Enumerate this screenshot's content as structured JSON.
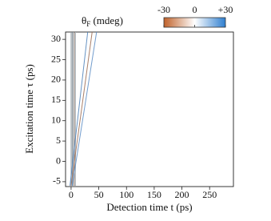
{
  "chart_data": {
    "type": "line",
    "x_label": "Detection time t (ps)",
    "y_label": "Excitation time τ (ps)",
    "colorbar": {
      "symbol": "θ",
      "subscript": "F",
      "unit": "(mdeg)",
      "clim": [
        -30,
        30
      ],
      "ticks": [
        -30,
        0,
        {
          "value": 30,
          "label": "+30"
        }
      ],
      "colors": [
        "#c0622a",
        "#ffffff",
        "#2f7fd0"
      ]
    },
    "xlim": [
      -10,
      293
    ],
    "xticks": [
      0,
      50,
      100,
      150,
      200,
      250
    ],
    "ylim": [
      -6.2,
      31.8
    ],
    "yticks": [
      -5,
      0,
      5,
      10,
      15,
      20,
      25,
      30
    ],
    "series": [
      {
        "color": "#8a949c",
        "x": [
          0,
          0
        ],
        "values": [
          -6,
          31.8
        ]
      },
      {
        "color": "#6f7a84",
        "x": [
          2,
          2
        ],
        "values": [
          -6,
          31.8
        ]
      },
      {
        "color": "#9aa3aa",
        "x": [
          4,
          4
        ],
        "values": [
          -6,
          31.8
        ]
      },
      {
        "color": "#7d6a60",
        "x": [
          6,
          6
        ],
        "values": [
          -6,
          31.8
        ]
      },
      {
        "color": "#a7b0b6",
        "x": [
          8,
          8
        ],
        "values": [
          -6,
          31.8
        ]
      },
      {
        "color": "#4a7fb8",
        "x": [
          -2,
          30
        ],
        "values": [
          -6,
          31.8
        ]
      },
      {
        "color": "#9a6a50",
        "x": [
          0,
          38
        ],
        "values": [
          -6,
          31.8
        ]
      },
      {
        "color": "#5b8cc4",
        "x": [
          2,
          46
        ],
        "values": [
          -6,
          31.8
        ]
      }
    ]
  }
}
